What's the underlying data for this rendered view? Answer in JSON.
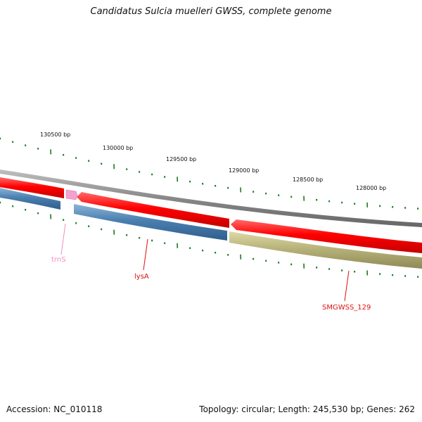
{
  "title": "Candidatus Sulcia muelleri GWSS, complete genome",
  "footer": {
    "accession": "Accession: NC_010118",
    "summary": "Topology: circular; Length: 245,530 bp; Genes: 262"
  },
  "scale_labels": [
    "130500 bp",
    "130000 bp",
    "129500 bp",
    "129000 bp",
    "128500 bp",
    "128000 bp"
  ],
  "genes": [
    {
      "name": "trnS",
      "color": "#f090c0",
      "type": "tRNA"
    },
    {
      "name": "lysA",
      "color": "#dd1111",
      "type": "CDS"
    },
    {
      "name": "SMGWSS_129",
      "color": "#dd1111",
      "type": "CDS"
    }
  ],
  "colors": {
    "backbone": "#888888",
    "forward_cds": "#ff0000",
    "reverse_blue": "#4a7fb0",
    "reverse_olive": "#b8b37a",
    "trna": "#f4a0d0",
    "ticks": "#1a7a1a"
  }
}
